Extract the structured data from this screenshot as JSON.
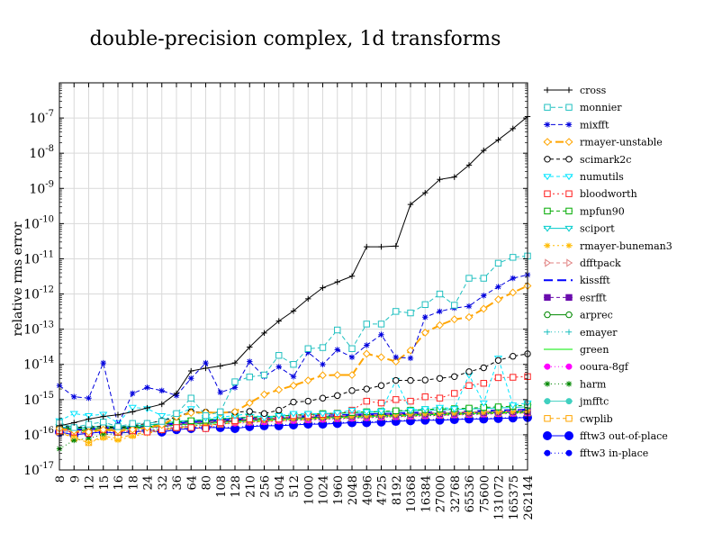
{
  "chart_data": {
    "type": "line",
    "title": "double-precision complex, 1d transforms",
    "xlabel": "",
    "ylabel": "relative rms error",
    "yscale": "log",
    "ylim": [
      1e-17,
      1e-06
    ],
    "y_tick_exponents": [
      -17,
      -16,
      -15,
      -14,
      -13,
      -12,
      -11,
      -10,
      -9,
      -8,
      -7
    ],
    "grid": true,
    "legend_position": "right outside",
    "categories": [
      "8",
      "9",
      "12",
      "15",
      "16",
      "18",
      "24",
      "32",
      "36",
      "64",
      "80",
      "108",
      "128",
      "210",
      "256",
      "504",
      "512",
      "1000",
      "1024",
      "1960",
      "2048",
      "4096",
      "4725",
      "8192",
      "10368",
      "16384",
      "27000",
      "32768",
      "65536",
      "75600",
      "131072",
      "165375",
      "262144"
    ],
    "series": [
      {
        "name": "cross",
        "color": "#000000",
        "dash": "",
        "marker": "plus",
        "values": [
          1.8e-16,
          2.2e-16,
          2.8e-16,
          3.3e-16,
          3.7e-16,
          4.5e-16,
          5.8e-16,
          7.4e-16,
          1.5e-15,
          6.5e-15,
          7.8e-15,
          9e-15,
          1.1e-14,
          3.1e-14,
          7.8e-14,
          1.7e-13,
          3.3e-13,
          7.3e-13,
          1.5e-12,
          2.2e-12,
          3.2e-12,
          2.2e-11,
          2.2e-11,
          2.3e-11,
          3.5e-10,
          7.5e-10,
          1.8e-09,
          2.1e-09,
          4.6e-09,
          1.2e-08,
          2.4e-08,
          5e-08,
          1.1e-07
        ]
      },
      {
        "name": "monnier",
        "color": "#20c0c0",
        "dash": "5,3",
        "marker": "square",
        "values": [
          2.2e-16,
          1.6e-16,
          2e-16,
          2.3e-16,
          1.7e-16,
          2.1e-16,
          2.1e-16,
          2.4e-16,
          4e-16,
          1.1e-15,
          3.5e-16,
          4.5e-16,
          3.2e-15,
          4.4e-15,
          5e-15,
          1.8e-14,
          1e-14,
          2.8e-14,
          3e-14,
          9.5e-14,
          2.8e-14,
          1.4e-13,
          1.4e-13,
          3.2e-13,
          2.9e-13,
          5e-13,
          1e-12,
          4.8e-13,
          2.8e-12,
          2.8e-12,
          7.5e-12,
          1.1e-11,
          1.2e-11
        ]
      },
      {
        "name": "mixfft",
        "color": "#0000dd",
        "dash": "5,3",
        "marker": "star",
        "values": [
          2.5e-15,
          1.2e-15,
          1.1e-15,
          1.1e-14,
          1.9e-16,
          1.5e-15,
          2.2e-15,
          1.8e-15,
          1.3e-15,
          4e-15,
          1.1e-14,
          1.6e-15,
          2.2e-15,
          1.2e-14,
          4.5e-15,
          8.5e-15,
          4.5e-15,
          2.2e-14,
          1e-14,
          2.6e-14,
          1.6e-14,
          3.5e-14,
          7e-14,
          1.6e-14,
          1.5e-14,
          2.2e-13,
          3.2e-13,
          4e-13,
          4.5e-13,
          9e-13,
          1.6e-12,
          2.8e-12,
          3.5e-12
        ]
      },
      {
        "name": "rmayer-unstable",
        "color": "#ffa500",
        "dash": "9,4",
        "marker": "diamond",
        "values": [
          1.5e-16,
          1.3e-16,
          1.2e-16,
          1.4e-16,
          1.3e-16,
          1.4e-16,
          1.6e-16,
          1.9e-16,
          3.2e-16,
          4.2e-16,
          4.3e-16,
          4.2e-16,
          4.5e-16,
          8e-16,
          1.4e-15,
          1.9e-15,
          2.5e-15,
          3.5e-15,
          4.9e-15,
          5e-15,
          5e-15,
          2e-14,
          1.6e-14,
          1.2e-14,
          2.5e-14,
          8e-14,
          1.3e-13,
          1.9e-13,
          2.2e-13,
          3.8e-13,
          7e-13,
          1.1e-12,
          1.7e-12
        ]
      },
      {
        "name": "scimark2c",
        "color": "#000000",
        "dash": "4,3",
        "marker": "circle-open",
        "values": [
          1.8e-16,
          1.6e-16,
          1.7e-16,
          1.7e-16,
          1.6e-16,
          1.8e-16,
          2.1e-16,
          2.5e-16,
          3.2e-16,
          4.5e-16,
          4.4e-16,
          4.3e-16,
          4.4e-16,
          4.6e-16,
          4e-16,
          5e-16,
          8.5e-16,
          9e-16,
          1.1e-15,
          1.3e-15,
          1.8e-15,
          2e-15,
          2.5e-15,
          3.5e-15,
          3.5e-15,
          3.6e-15,
          4e-15,
          4.5e-15,
          6.2e-15,
          8e-15,
          1.3e-14,
          1.7e-14,
          2e-14
        ]
      },
      {
        "name": "numutils",
        "color": "#00e5ff",
        "dash": "4,3",
        "marker": "triangle-down",
        "values": [
          2.5e-16,
          4e-16,
          3.5e-16,
          3.8e-16,
          2.2e-16,
          6e-16,
          5.5e-16,
          3.5e-16,
          3.8e-16,
          5.5e-16,
          3e-16,
          3.2e-16,
          3.5e-16,
          4e-16,
          3e-16,
          3.5e-16,
          4e-16,
          4e-16,
          4e-16,
          4.2e-16,
          5e-16,
          4.5e-16,
          4.7e-16,
          3.5e-15,
          5e-16,
          5.5e-16,
          6e-16,
          5.5e-16,
          5e-15,
          8e-16,
          1.5e-14,
          7e-16,
          8e-16
        ]
      },
      {
        "name": "bloodworth",
        "color": "#ff2020",
        "dash": "2,3",
        "marker": "square",
        "values": [
          1.3e-16,
          1.2e-16,
          1.1e-16,
          1.4e-16,
          1.2e-16,
          1.3e-16,
          1.2e-16,
          1.4e-16,
          1.6e-16,
          1.6e-16,
          1.5e-16,
          2.2e-16,
          2.5e-16,
          2.8e-16,
          3e-16,
          2.8e-16,
          3.5e-16,
          3.5e-16,
          3.8e-16,
          4e-16,
          5e-16,
          9e-16,
          8e-16,
          1e-15,
          9e-16,
          1.2e-15,
          1.1e-15,
          1.5e-15,
          2.5e-15,
          2.9e-15,
          4.2e-15,
          4.3e-15,
          4.5e-15
        ]
      },
      {
        "name": "mpfun90",
        "color": "#00aa00",
        "dash": "4,3",
        "marker": "square",
        "values": [
          1.6e-16,
          1.5e-16,
          1.5e-16,
          1.8e-16,
          1.6e-16,
          1.7e-16,
          1.8e-16,
          2e-16,
          2.3e-16,
          2.5e-16,
          2.6e-16,
          2.8e-16,
          3e-16,
          3.1e-16,
          3.3e-16,
          3.4e-16,
          3.6e-16,
          3.8e-16,
          4e-16,
          4.1e-16,
          4.3e-16,
          4.5e-16,
          4.6e-16,
          4.8e-16,
          5e-16,
          5.2e-16,
          5.4e-16,
          5.5e-16,
          5.7e-16,
          6e-16,
          6.2e-16,
          6.5e-16,
          7e-16
        ]
      },
      {
        "name": "sciport",
        "color": "#00cccc",
        "dash": "",
        "marker": "triangle-down",
        "values": [
          1.7e-16,
          1.5e-16,
          1.6e-16,
          1.8e-16,
          1.6e-16,
          1.7e-16,
          1.9e-16,
          2.1e-16,
          2.4e-16,
          2.6e-16,
          2.7e-16,
          2.9e-16,
          3e-16,
          3.2e-16,
          3.3e-16,
          3.4e-16,
          3.6e-16,
          3.7e-16,
          3.9e-16,
          4e-16,
          4.2e-16,
          4.3e-16,
          4.5e-16,
          4.6e-16,
          4.8e-16,
          5e-16,
          5.1e-16,
          5.2e-16,
          5.4e-16,
          5.6e-16,
          5.8e-16,
          6e-16,
          6.2e-16
        ]
      },
      {
        "name": "rmayer-buneman3",
        "color": "#ffbb00",
        "dash": "2,3",
        "marker": "star",
        "values": [
          1.2e-16,
          9e-17,
          6e-17,
          8e-17,
          7e-17,
          9e-17,
          1.1e-16,
          1.3e-16,
          1.5e-16,
          1.7e-16,
          1.9e-16,
          2e-16,
          2.2e-16,
          2.3e-16,
          2.5e-16,
          2.6e-16,
          2.8e-16,
          2.9e-16,
          3e-16,
          3.1e-16,
          3.3e-16,
          3.4e-16,
          3.5e-16,
          3.6e-16,
          3.8e-16,
          3.9e-16,
          4e-16,
          4.1e-16,
          4.2e-16,
          4.3e-16,
          4.4e-16,
          4.5e-16,
          4.6e-16
        ]
      },
      {
        "name": "dfftpack",
        "color": "#e08080",
        "dash": "4,3",
        "marker": "triangle-right",
        "values": [
          1.4e-16,
          1.3e-16,
          1.3e-16,
          1.5e-16,
          1.4e-16,
          1.5e-16,
          1.6e-16,
          1.8e-16,
          2e-16,
          2.2e-16,
          2.3e-16,
          2.5e-16,
          2.6e-16,
          2.8e-16,
          2.9e-16,
          3e-16,
          3.1e-16,
          3.3e-16,
          3.4e-16,
          3.5e-16,
          3.6e-16,
          3.7e-16,
          3.8e-16,
          3.9e-16,
          4e-16,
          4.2e-16,
          4.3e-16,
          4.4e-16,
          4.5e-16,
          4.6e-16,
          4.7e-16,
          4.8e-16,
          5e-16
        ]
      },
      {
        "name": "kissfft",
        "color": "#0000ff",
        "dash": "10,5",
        "marker": "none",
        "values": [
          1.5e-16,
          1.4e-16,
          1.4e-16,
          1.6e-16,
          1.5e-16,
          1.6e-16,
          1.7e-16,
          1.9e-16,
          2.1e-16,
          2.3e-16,
          2.4e-16,
          2.6e-16,
          2.7e-16,
          2.9e-16,
          3e-16,
          3.1e-16,
          3.2e-16,
          3.4e-16,
          3.5e-16,
          3.6e-16,
          3.7e-16,
          3.8e-16,
          3.9e-16,
          4e-16,
          4.2e-16,
          4.3e-16,
          4.4e-16,
          4.5e-16,
          4.6e-16,
          4.8e-16,
          4.9e-16,
          5e-16,
          5.2e-16
        ]
      },
      {
        "name": "esrfft",
        "color": "#6a0dad",
        "dash": "4,3",
        "marker": "square-filled",
        "values": [
          1.4e-16,
          1.3e-16,
          1.3e-16,
          1.5e-16,
          1.4e-16,
          1.5e-16,
          1.6e-16,
          1.7e-16,
          1.9e-16,
          2.1e-16,
          2.2e-16,
          2.3e-16,
          2.5e-16,
          2.6e-16,
          2.7e-16,
          2.8e-16,
          3e-16,
          3.1e-16,
          3.2e-16,
          3.3e-16,
          3.4e-16,
          3.5e-16,
          3.6e-16,
          3.7e-16,
          3.8e-16,
          3.9e-16,
          4e-16,
          4.1e-16,
          4.2e-16,
          4.3e-16,
          4.4e-16,
          4.5e-16,
          4.6e-16
        ]
      },
      {
        "name": "arprec",
        "color": "#008800",
        "dash": "",
        "marker": "circle-open",
        "values": [
          1.6e-16,
          1.4e-16,
          1.4e-16,
          1.6e-16,
          1.5e-16,
          1.6e-16,
          1.7e-16,
          1.8e-16,
          2e-16,
          2.2e-16,
          2.3e-16,
          2.4e-16,
          2.5e-16,
          2.7e-16,
          2.8e-16,
          2.9e-16,
          3e-16,
          3.1e-16,
          3.2e-16,
          3.3e-16,
          3.4e-16,
          3.5e-16,
          3.6e-16,
          3.7e-16,
          3.8e-16,
          3.9e-16,
          4e-16,
          4.1e-16,
          4.2e-16,
          4.3e-16,
          4.4e-16,
          4.5e-16,
          4.6e-16
        ]
      },
      {
        "name": "emayer",
        "color": "#20c0c0",
        "dash": "1,3",
        "marker": "plus",
        "values": [
          1.3e-16,
          1.2e-16,
          1.2e-16,
          1.4e-16,
          1.3e-16,
          1.4e-16,
          1.5e-16,
          1.6e-16,
          1.8e-16,
          1.9e-16,
          2e-16,
          2.1e-16,
          2.3e-16,
          2.4e-16,
          2.5e-16,
          2.6e-16,
          2.7e-16,
          2.8e-16,
          2.9e-16,
          3e-16,
          3.1e-16,
          3.2e-16,
          3.3e-16,
          3.4e-16,
          3.5e-16,
          3.6e-16,
          3.7e-16,
          3.8e-16,
          3.9e-16,
          4e-16,
          4.1e-16,
          4.2e-16,
          4.3e-16
        ]
      },
      {
        "name": "green",
        "color": "#00ee00",
        "dash": "",
        "marker": "none",
        "values": [
          1.5e-16,
          1.3e-16,
          1.3e-16,
          1.5e-16,
          1.4e-16,
          1.5e-16,
          1.6e-16,
          1.7e-16,
          1.9e-16,
          2e-16,
          2.1e-16,
          2.2e-16,
          2.4e-16,
          2.5e-16,
          2.6e-16,
          2.7e-16,
          2.8e-16,
          2.9e-16,
          3e-16,
          3.1e-16,
          3.2e-16,
          3.3e-16,
          3.4e-16,
          3.5e-16,
          3.6e-16,
          3.7e-16,
          3.8e-16,
          3.9e-16,
          4e-16,
          4.1e-16,
          4.2e-16,
          4.3e-16,
          4.4e-16
        ]
      },
      {
        "name": "ooura-8gf",
        "color": "#ff00ff",
        "dash": "1,3",
        "marker": "circle-filled",
        "values": [
          1.4e-16,
          1.2e-16,
          1.2e-16,
          1.4e-16,
          1.3e-16,
          1.4e-16,
          1.5e-16,
          1.6e-16,
          1.7e-16,
          1.8e-16,
          1.9e-16,
          2e-16,
          2.1e-16,
          2.2e-16,
          2.3e-16,
          2.4e-16,
          2.5e-16,
          2.6e-16,
          2.7e-16,
          2.8e-16,
          2.9e-16,
          3e-16,
          3.1e-16,
          3.2e-16,
          3.3e-16,
          3.4e-16,
          3.5e-16,
          3.6e-16,
          3.7e-16,
          3.8e-16,
          3.9e-16,
          4e-16,
          4.1e-16
        ]
      },
      {
        "name": "harm",
        "color": "#008800",
        "dash": "1,3",
        "marker": "star",
        "values": [
          4e-17,
          7e-17,
          8e-17,
          1e-16,
          1.1e-16,
          1.2e-16,
          1.3e-16,
          1.5e-16,
          1.6e-16,
          1.8e-16,
          1.9e-16,
          2e-16,
          2.2e-16,
          2.3e-16,
          2.4e-16,
          2.5e-16,
          2.6e-16,
          2.7e-16,
          2.8e-16,
          2.9e-16,
          3e-16,
          3.1e-16,
          3.2e-16,
          3.3e-16,
          3.4e-16,
          3.5e-16,
          3.6e-16,
          3.7e-16,
          3.8e-16,
          3.9e-16,
          4e-16,
          4.1e-16,
          4.2e-16
        ]
      },
      {
        "name": "jmfftc",
        "color": "#40d0c0",
        "dash": "",
        "marker": "circle-filled",
        "values": [
          2e-16,
          1.6e-16,
          1.6e-16,
          1.8e-16,
          1.7e-16,
          1.8e-16,
          1.9e-16,
          2e-16,
          2.2e-16,
          2.4e-16,
          2.5e-16,
          2.6e-16,
          2.7e-16,
          2.9e-16,
          3e-16,
          3.1e-16,
          3.2e-16,
          3.3e-16,
          3.4e-16,
          3.5e-16,
          3.6e-16,
          3.7e-16,
          3.8e-16,
          3.9e-16,
          4e-16,
          4.1e-16,
          4.2e-16,
          4.3e-16,
          4.4e-16,
          4.5e-16,
          4.6e-16,
          4.7e-16,
          4.8e-16
        ]
      },
      {
        "name": "cwplib",
        "color": "#ffa500",
        "dash": "4,3",
        "marker": "square",
        "values": [
          1.2e-16,
          8e-17,
          6e-17,
          9e-17,
          8e-17,
          1e-16,
          1.2e-16,
          1.4e-16,
          1.6e-16,
          1.8e-16,
          1.9e-16,
          2e-16,
          2.2e-16,
          2.3e-16,
          2.4e-16,
          2.5e-16,
          2.6e-16,
          2.7e-16,
          2.8e-16,
          2.9e-16,
          3e-16,
          3.1e-16,
          3.2e-16,
          3.3e-16,
          3.4e-16,
          3.5e-16,
          3.6e-16,
          3.7e-16,
          3.8e-16,
          3.9e-16,
          4e-16,
          4.1e-16,
          4.2e-16
        ]
      },
      {
        "name": "fftw3 out-of-place",
        "color": "#0000ff",
        "dash": "",
        "marker": "circle-filled-large",
        "values": [
          1.2e-16,
          1e-16,
          1.1e-16,
          1.2e-16,
          1.1e-16,
          1.2e-16,
          1.3e-16,
          1.2e-16,
          1.4e-16,
          1.5e-16,
          1.6e-16,
          1.6e-16,
          1.5e-16,
          1.7e-16,
          1.8e-16,
          1.8e-16,
          1.9e-16,
          2e-16,
          2e-16,
          2.1e-16,
          2.2e-16,
          2.2e-16,
          2.3e-16,
          2.4e-16,
          2.5e-16,
          2.6e-16,
          2.6e-16,
          2.7e-16,
          2.8e-16,
          2.8e-16,
          2.9e-16,
          3e-16,
          3.1e-16
        ]
      },
      {
        "name": "fftw3 in-place",
        "color": "#0000ff",
        "dash": "1,3",
        "marker": "circle-filled",
        "values": [
          1.3e-16,
          1.1e-16,
          1.2e-16,
          1.3e-16,
          1.2e-16,
          1.3e-16,
          1.4e-16,
          1.3e-16,
          1.5e-16,
          1.6e-16,
          1.7e-16,
          1.7e-16,
          1.6e-16,
          1.8e-16,
          1.9e-16,
          1.9e-16,
          2e-16,
          2.1e-16,
          2.1e-16,
          2.2e-16,
          2.3e-16,
          2.3e-16,
          2.4e-16,
          2.5e-16,
          2.6e-16,
          2.7e-16,
          2.7e-16,
          2.8e-16,
          2.9e-16,
          2.9e-16,
          3e-16,
          3.1e-16,
          3.2e-16
        ]
      }
    ]
  }
}
